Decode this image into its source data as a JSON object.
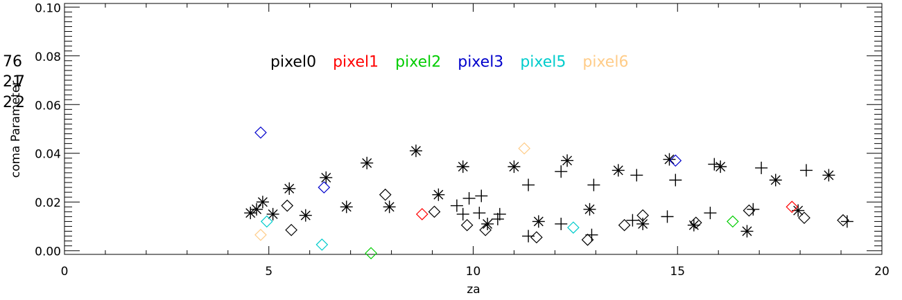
{
  "chart_data": {
    "type": "scatter",
    "title": "",
    "xlabel": "za",
    "ylabel": "coma Parameter",
    "xlim": [
      0,
      20
    ],
    "ylim": [
      -0.0015,
      0.1015
    ],
    "x_ticks": [
      0,
      5,
      10,
      15,
      20
    ],
    "x_tick_labels": [
      "0",
      "5",
      "10",
      "15",
      "20"
    ],
    "y_ticks": [
      0.0,
      0.02,
      0.04,
      0.06,
      0.08,
      0.1
    ],
    "y_tick_labels": [
      "0.00",
      "0.02",
      "0.04",
      "0.06",
      "0.08",
      "0.10"
    ],
    "grid": false,
    "stray_labels": [
      "76",
      "21",
      "2",
      "7",
      "2"
    ],
    "series": [
      {
        "name": "pixel0",
        "color": "#000000",
        "marker": "diamond",
        "points": [
          [
            5.45,
            0.0185
          ],
          [
            5.55,
            0.0085
          ],
          [
            7.85,
            0.023
          ],
          [
            9.05,
            0.016
          ],
          [
            9.85,
            0.0105
          ],
          [
            10.3,
            0.0085
          ],
          [
            11.55,
            0.0055
          ],
          [
            12.8,
            0.0045
          ],
          [
            13.7,
            0.0105
          ],
          [
            14.15,
            0.0145
          ],
          [
            15.45,
            0.0115
          ],
          [
            16.75,
            0.0165
          ],
          [
            18.1,
            0.0135
          ],
          [
            19.05,
            0.0125
          ]
        ]
      },
      {
        "name": "pixel0",
        "color": "#000000",
        "marker": "asterisk",
        "points": [
          [
            4.55,
            0.0155
          ],
          [
            4.7,
            0.017
          ],
          [
            4.85,
            0.02
          ],
          [
            5.1,
            0.015
          ],
          [
            5.5,
            0.0255
          ],
          [
            5.9,
            0.0145
          ],
          [
            6.4,
            0.03
          ],
          [
            6.9,
            0.018
          ],
          [
            7.4,
            0.036
          ],
          [
            7.95,
            0.018
          ],
          [
            8.6,
            0.041
          ],
          [
            9.15,
            0.023
          ],
          [
            9.75,
            0.0345
          ],
          [
            10.35,
            0.011
          ],
          [
            11.0,
            0.0345
          ],
          [
            11.6,
            0.012
          ],
          [
            12.3,
            0.037
          ],
          [
            12.85,
            0.017
          ],
          [
            13.55,
            0.033
          ],
          [
            14.15,
            0.011
          ],
          [
            14.8,
            0.0375
          ],
          [
            15.4,
            0.0105
          ],
          [
            16.05,
            0.0345
          ],
          [
            16.7,
            0.008
          ],
          [
            17.4,
            0.029
          ],
          [
            17.95,
            0.0165
          ],
          [
            18.7,
            0.031
          ]
        ]
      },
      {
        "name": "pixel0",
        "color": "#000000",
        "marker": "plus",
        "points": [
          [
            9.6,
            0.0185
          ],
          [
            9.75,
            0.015
          ],
          [
            9.9,
            0.0215
          ],
          [
            10.15,
            0.0155
          ],
          [
            10.2,
            0.0225
          ],
          [
            10.6,
            0.013
          ],
          [
            10.65,
            0.015
          ],
          [
            11.35,
            0.027
          ],
          [
            11.35,
            0.006
          ],
          [
            12.15,
            0.0325
          ],
          [
            12.15,
            0.011
          ],
          [
            12.95,
            0.027
          ],
          [
            12.9,
            0.0065
          ],
          [
            13.9,
            0.0125
          ],
          [
            14.0,
            0.031
          ],
          [
            14.75,
            0.014
          ],
          [
            14.95,
            0.029
          ],
          [
            15.8,
            0.0155
          ],
          [
            15.9,
            0.0355
          ],
          [
            16.85,
            0.017
          ],
          [
            17.05,
            0.034
          ],
          [
            18.15,
            0.033
          ],
          [
            19.15,
            0.012
          ]
        ]
      },
      {
        "name": "pixel1",
        "color": "#ff0000",
        "marker": "diamond",
        "points": [
          [
            8.75,
            0.015
          ],
          [
            17.8,
            0.018
          ]
        ]
      },
      {
        "name": "pixel2",
        "color": "#00cc00",
        "marker": "diamond",
        "points": [
          [
            7.5,
            -0.001
          ],
          [
            16.35,
            0.012
          ]
        ]
      },
      {
        "name": "pixel3",
        "color": "#0000cc",
        "marker": "diamond",
        "points": [
          [
            4.8,
            0.0485
          ],
          [
            6.35,
            0.026
          ],
          [
            14.95,
            0.037
          ]
        ]
      },
      {
        "name": "pixel5",
        "color": "#00cccc",
        "marker": "diamond",
        "points": [
          [
            4.95,
            0.012
          ],
          [
            6.3,
            0.0025
          ],
          [
            12.45,
            0.0095
          ]
        ]
      },
      {
        "name": "pixel6",
        "color": "#ffcc88",
        "marker": "diamond",
        "points": [
          [
            4.8,
            0.0065
          ],
          [
            11.25,
            0.042
          ]
        ]
      }
    ],
    "legend": {
      "placement": "top-center",
      "entries": [
        {
          "label": "pixel0",
          "color": "#000000"
        },
        {
          "label": "pixel1",
          "color": "#ff0000"
        },
        {
          "label": "pixel2",
          "color": "#00cc00"
        },
        {
          "label": "pixel3",
          "color": "#0000cc"
        },
        {
          "label": "pixel5",
          "color": "#00cccc"
        },
        {
          "label": "pixel6",
          "color": "#ffcc88"
        }
      ]
    }
  }
}
